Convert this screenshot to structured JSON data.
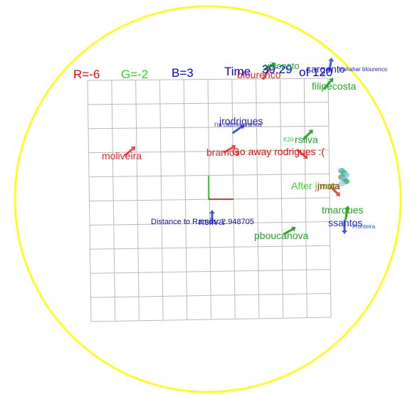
{
  "hud": {
    "r_text": "R=-6",
    "g_text": "G=-2",
    "b_text": "B=3",
    "time_text": "Time",
    "time_value": "39:29",
    "time_of": "of 120",
    "colors": {
      "r": "#ff0000",
      "g": "#00cc00",
      "b": "#0000ff"
    }
  },
  "arena": {
    "ring_color": "#ffff00",
    "grid_color": "#bbbbbb"
  },
  "distance_readout": "Distance  to  Ramos:  2.948705",
  "chat_messages": [
    {
      "id": "chat-go-away",
      "text": "Go  away  rodrigues  :(",
      "color": "#ff0000"
    },
    {
      "id": "chat-after",
      "text": "After  jmota  ",
      "color": "#33dd33"
    }
  ],
  "players": [
    {
      "name": "jrodrigues",
      "color": "#2222cc",
      "sub": "I'm  catching  ramos",
      "sub_color": "#2222cc"
    },
    {
      "name": "moliveira",
      "color": "#ee2222",
      "sub": "",
      "sub_color": "#ffcc00"
    },
    {
      "name": "bramos",
      "color": "#ee2222",
      "sub": "",
      "sub_color": "#ffcc00"
    },
    {
      "name": "rsilva",
      "color": "#22aa22",
      "sub": "K20",
      "sub_color": "#33cc33"
    },
    {
      "name": "jmota",
      "color": "#cc2200",
      "sub": "",
      "sub_color": "#33cc33"
    },
    {
      "name": "tmarques",
      "color": "#22aa22",
      "sub": "",
      "sub_color": "#22aa22"
    },
    {
      "name": "ssantos",
      "color": "#2222cc",
      "sub": "Fronteira",
      "sub_color": "#2255ff"
    },
    {
      "name": "nsilva",
      "color": "#2222cc",
      "sub": "",
      "sub_color": "#2222cc"
    },
    {
      "name": "pboucanova",
      "color": "#22aa22",
      "sub": "",
      "sub_color": "#22aa22"
    },
    {
      "name": "filipecosta",
      "color": "#22aa22",
      "sub": "",
      "sub_color": "#22aa22"
    },
    {
      "name": "blourenco",
      "color": "#ee2222",
      "sub": "",
      "sub_color": "#ee2222"
    },
    {
      "name": "vinspeto",
      "color": "#22aa22",
      "sub": "",
      "sub_color": "#22aa22"
    },
    {
      "name": "sargento",
      "color": "#2222cc",
      "sub": "Hahahar  blourenco",
      "sub_color": "#2222cc"
    }
  ]
}
